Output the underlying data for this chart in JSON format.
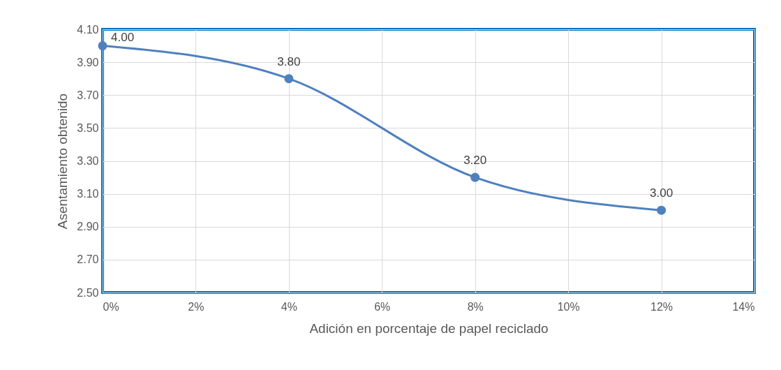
{
  "chart_data": {
    "type": "line",
    "xlabel": "Adición en porcentaje de papel reciclado",
    "ylabel": "Asentamiento obtenido",
    "x": [
      0,
      4,
      8,
      12
    ],
    "series": [
      {
        "color": "#4f81bd",
        "values": [
          4.0,
          3.8,
          3.2,
          3.0
        ],
        "value_labels": [
          "4.00",
          "3.80",
          "3.20",
          "3.00"
        ]
      }
    ],
    "xlim": [
      0,
      14
    ],
    "xticks": [
      {
        "value": 0,
        "label": "0%"
      },
      {
        "value": 2,
        "label": "2%"
      },
      {
        "value": 4,
        "label": "4%"
      },
      {
        "value": 6,
        "label": "6%"
      },
      {
        "value": 8,
        "label": "8%"
      },
      {
        "value": 10,
        "label": "10%"
      },
      {
        "value": 12,
        "label": "12%"
      },
      {
        "value": 14,
        "label": "14%"
      }
    ],
    "ylim": [
      2.5,
      4.1
    ],
    "yticks": [
      {
        "value": 2.5,
        "label": "2.50"
      },
      {
        "value": 2.7,
        "label": "2.70"
      },
      {
        "value": 2.9,
        "label": "2.90"
      },
      {
        "value": 3.1,
        "label": "3.10"
      },
      {
        "value": 3.3,
        "label": "3.30"
      },
      {
        "value": 3.5,
        "label": "3.50"
      },
      {
        "value": 3.7,
        "label": "3.70"
      },
      {
        "value": 3.9,
        "label": "3.90"
      },
      {
        "value": 4.1,
        "label": "4.10"
      }
    ],
    "grid": true,
    "marker": "circle",
    "line_style": "solid"
  }
}
